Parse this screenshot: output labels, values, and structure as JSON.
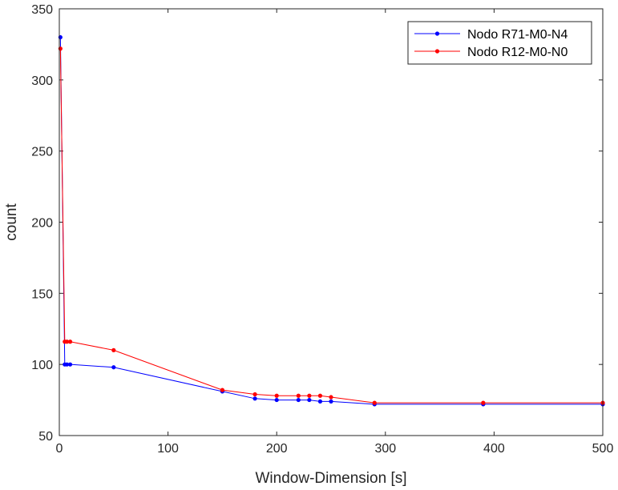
{
  "chart_data": {
    "type": "line",
    "title": "",
    "xlabel": "Window-Dimension [s]",
    "ylabel": "count",
    "xlim": [
      0,
      500
    ],
    "ylim": [
      50,
      350
    ],
    "xticks": [
      0,
      100,
      200,
      300,
      400,
      500
    ],
    "yticks": [
      50,
      100,
      150,
      200,
      250,
      300,
      350
    ],
    "grid": false,
    "legend_position": "top-right",
    "series": [
      {
        "name": "Nodo R71-M0-N4",
        "color": "#0000ff",
        "marker": "dot",
        "x": [
          1,
          5,
          7,
          10,
          50,
          150,
          180,
          200,
          220,
          230,
          240,
          250,
          290,
          390,
          500
        ],
        "y": [
          330,
          100,
          100,
          100,
          98,
          81,
          76,
          75,
          75,
          75,
          74,
          74,
          72,
          72,
          72
        ]
      },
      {
        "name": "Nodo R12-M0-N0",
        "color": "#ff0000",
        "marker": "dot",
        "x": [
          1,
          5,
          7,
          10,
          50,
          150,
          180,
          200,
          220,
          230,
          240,
          250,
          290,
          390,
          500
        ],
        "y": [
          322,
          116,
          116,
          116,
          110,
          82,
          79,
          78,
          78,
          78,
          78,
          77,
          73,
          73,
          73
        ]
      }
    ]
  }
}
